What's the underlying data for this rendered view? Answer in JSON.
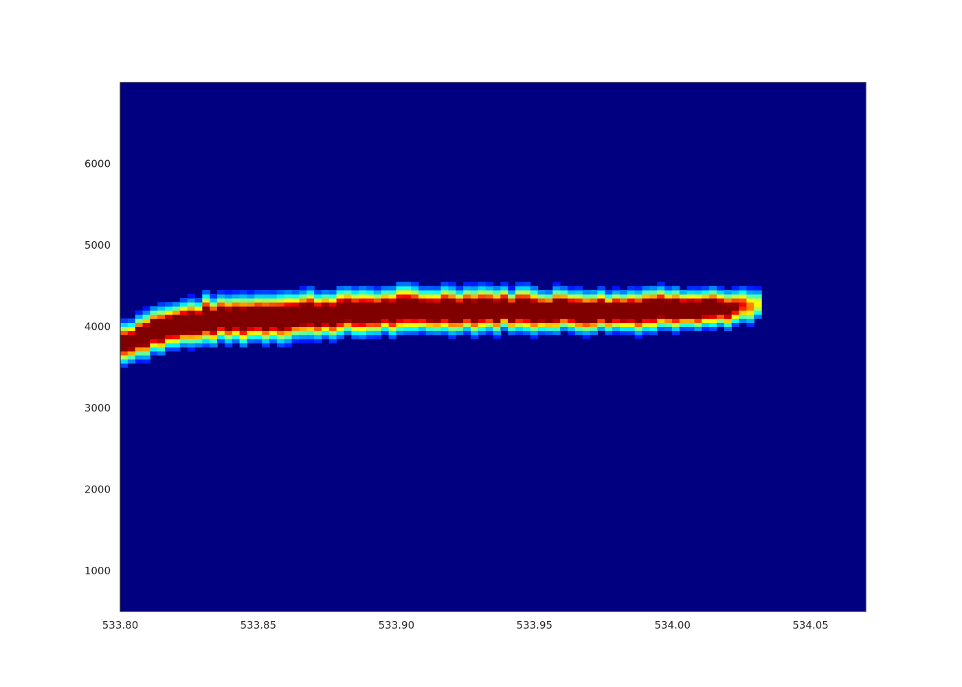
{
  "chart_data": {
    "type": "heatmap",
    "title": "",
    "xlabel": "",
    "ylabel": "",
    "xlim": [
      533.8,
      534.07
    ],
    "ylim": [
      500,
      7000
    ],
    "grid": false,
    "legend": "none",
    "colormap": "jet",
    "background_color": "#000080",
    "frame_color": "#262640",
    "x_ticks": [
      "533.80",
      "533.85",
      "533.90",
      "533.95",
      "534.00",
      "534.05"
    ],
    "y_ticks": [
      "1000",
      "2000",
      "3000",
      "4000",
      "5000",
      "6000"
    ],
    "x_tick_values": [
      533.8,
      533.85,
      533.9,
      533.95,
      534.0,
      534.05
    ],
    "y_tick_values": [
      1000,
      2000,
      3000,
      4000,
      5000,
      6000
    ],
    "band": {
      "x_start": 533.8,
      "x_end": 534.03,
      "x_step": 0.0027,
      "y_step": 50,
      "center": [
        [
          533.8,
          3800
        ],
        [
          533.81,
          3950
        ],
        [
          533.82,
          4020
        ],
        [
          533.83,
          4080
        ],
        [
          533.85,
          4120
        ],
        [
          533.88,
          4170
        ],
        [
          533.9,
          4200
        ],
        [
          533.93,
          4220
        ],
        [
          533.96,
          4200
        ],
        [
          533.98,
          4190
        ],
        [
          534.0,
          4240
        ],
        [
          534.02,
          4230
        ],
        [
          534.03,
          4260
        ]
      ],
      "half_width": [
        [
          533.8,
          300
        ],
        [
          533.83,
          330
        ],
        [
          533.87,
          330
        ],
        [
          533.92,
          310
        ],
        [
          533.97,
          300
        ],
        [
          534.0,
          280
        ],
        [
          534.03,
          240
        ]
      ],
      "peak_intensity": [
        [
          533.8,
          0.85
        ],
        [
          533.81,
          1.0
        ],
        [
          534.01,
          1.0
        ],
        [
          534.02,
          0.8
        ],
        [
          534.03,
          0.45
        ]
      ]
    }
  }
}
